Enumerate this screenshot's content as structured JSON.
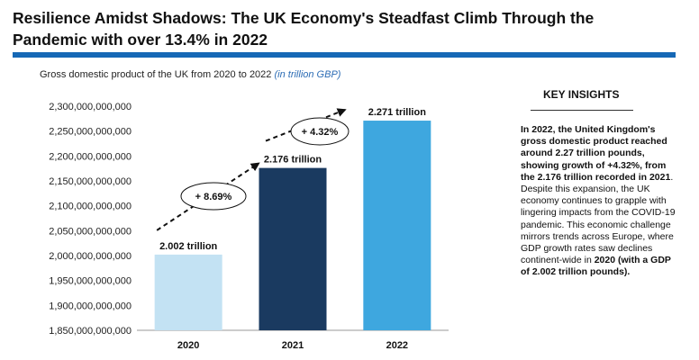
{
  "title": "Resilience Amidst Shadows: The UK Economy's Steadfast Climb Through the Pandemic with over 13.4% in 2022",
  "subtitle": {
    "text": "Gross domestic product of the UK from 2020 to 2022",
    "unit": "(in trillion GBP)"
  },
  "insights": {
    "heading": "KEY INSIGHTS",
    "p1": "In 2022, the United Kingdom's gross domestic product reached around 2.27 trillion pounds, showing growth of +4.32%, from the 2.176 trillion recorded in 2021",
    "p2": ". Despite this expansion, the UK economy continues to grapple with lingering impacts from the COVID-19 pandemic. This economic challenge mirrors trends across Europe, where GDP growth rates saw declines continent-wide in ",
    "p3": "2020 (with a GDP of 2.002 trillion pounds)."
  },
  "colors": {
    "title_rule": "#1668b6",
    "bar_2020": "#c3e2f3",
    "bar_2021": "#1a3a60",
    "bar_2022": "#3ea7df"
  },
  "chart_data": {
    "type": "bar",
    "categories": [
      "2020",
      "2021",
      "2022"
    ],
    "values": [
      2002000000000,
      2176000000000,
      2271000000000
    ],
    "data_labels": [
      "2.002 trillion",
      "2.176 trillion",
      "2.271 trillion"
    ],
    "bar_colors": [
      "#c3e2f3",
      "#1a3a60",
      "#3ea7df"
    ],
    "ylim": [
      1850000000000,
      2300000000000
    ],
    "yticks": [
      1850000000000,
      1900000000000,
      1950000000000,
      2000000000000,
      2050000000000,
      2100000000000,
      2150000000000,
      2200000000000,
      2250000000000,
      2300000000000
    ],
    "ytick_labels": [
      "1,850,000,000,000",
      "1,900,000,000,000",
      "1,950,000,000,000",
      "2,000,000,000,000",
      "2,050,000,000,000",
      "2,100,000,000,000",
      "2,150,000,000,000",
      "2,200,000,000,000",
      "2,250,000,000,000",
      "2,300,000,000,000"
    ],
    "annotations": [
      "+ 8.69%",
      "+ 4.32%"
    ],
    "xlabel": "",
    "ylabel": "",
    "grid": false
  }
}
